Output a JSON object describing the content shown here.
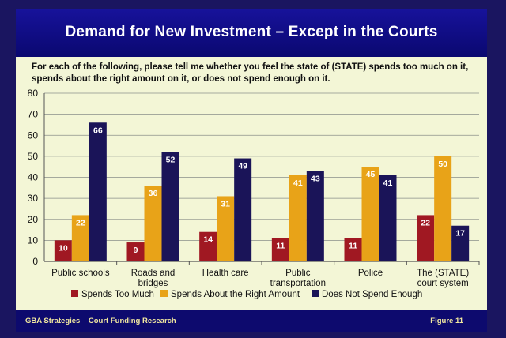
{
  "slide": {
    "title": "Demand for New Investment – Except in the Courts",
    "question": "For each of the following, please tell me whether you feel the state of (STATE) spends too much on it, spends about the right amount on it, or does not spend enough on it.",
    "footer_left": "GBA Strategies – Court Funding Research",
    "footer_right": "Figure  11"
  },
  "colors": {
    "spends_too_much": "#a01822",
    "about_right": "#e8a318",
    "not_enough": "#1a1458",
    "gridline": "#8a8f8a",
    "axis": "#555555"
  },
  "chart_data": {
    "type": "bar",
    "title": "Demand for New Investment – Except in the Courts",
    "xlabel": "",
    "ylabel": "",
    "ylim": [
      0,
      80
    ],
    "yticks": [
      0,
      10,
      20,
      30,
      40,
      50,
      60,
      70,
      80
    ],
    "grid": true,
    "legend_position": "bottom",
    "categories": [
      [
        "Public schools"
      ],
      [
        "Roads and",
        "bridges"
      ],
      [
        "Health care"
      ],
      [
        "Public",
        "transportation"
      ],
      [
        "Police"
      ],
      [
        "The (STATE)",
        "court system"
      ]
    ],
    "series": [
      {
        "name": "Spends Too Much",
        "color": "#a01822",
        "values": [
          10,
          9,
          14,
          11,
          11,
          22
        ]
      },
      {
        "name": "Spends About the Right Amount",
        "color": "#e8a318",
        "values": [
          22,
          36,
          31,
          41,
          45,
          50
        ]
      },
      {
        "name": "Does Not Spend Enough",
        "color": "#1a1458",
        "values": [
          66,
          52,
          49,
          43,
          41,
          17
        ]
      }
    ]
  }
}
